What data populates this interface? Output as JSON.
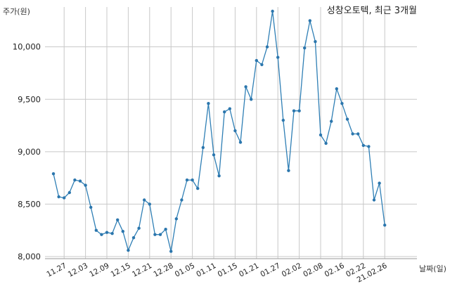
{
  "chart_data": {
    "type": "line",
    "title": "성창오토텍, 최근 3개월",
    "ylabel": "주가(원)",
    "xlabel": "날짜(일)",
    "ylim": [
      7980,
      10380
    ],
    "yticks": [
      8000,
      8500,
      9000,
      9500,
      10000
    ],
    "ytick_labels": [
      "8,000",
      "8,500",
      "9,000",
      "9,500",
      "10,000"
    ],
    "xtick_labels": [
      "11.27",
      "12.03",
      "12.09",
      "12.15",
      "12.21",
      "12.28",
      "01.05",
      "01.11",
      "01.15",
      "01.21",
      "01.27",
      "02.02",
      "02.08",
      "02.16",
      "02.22",
      "21.02.26"
    ],
    "xtick_index": [
      2,
      6,
      10,
      14,
      18,
      22,
      26,
      30,
      34,
      38,
      42,
      46,
      50,
      54,
      58,
      62
    ],
    "grid": true,
    "series": [
      {
        "color": "#2f7fb5",
        "values": [
          8790,
          8570,
          8560,
          8610,
          8730,
          8720,
          8680,
          8470,
          8250,
          8210,
          8230,
          8220,
          8350,
          8240,
          8060,
          8180,
          8270,
          8540,
          8500,
          8210,
          8210,
          8260,
          8050,
          8360,
          8540,
          8730,
          8730,
          8650,
          9040,
          9460,
          8970,
          8770,
          9380,
          9410,
          9200,
          9090,
          9620,
          9500,
          9870,
          9830,
          10000,
          10340,
          9900,
          9300,
          8820,
          9390,
          9390,
          9990,
          10250,
          10050,
          9160,
          9080,
          9290,
          9600,
          9460,
          9310,
          9170,
          9170,
          9060,
          9050,
          8540,
          8700,
          8300
        ]
      }
    ]
  }
}
